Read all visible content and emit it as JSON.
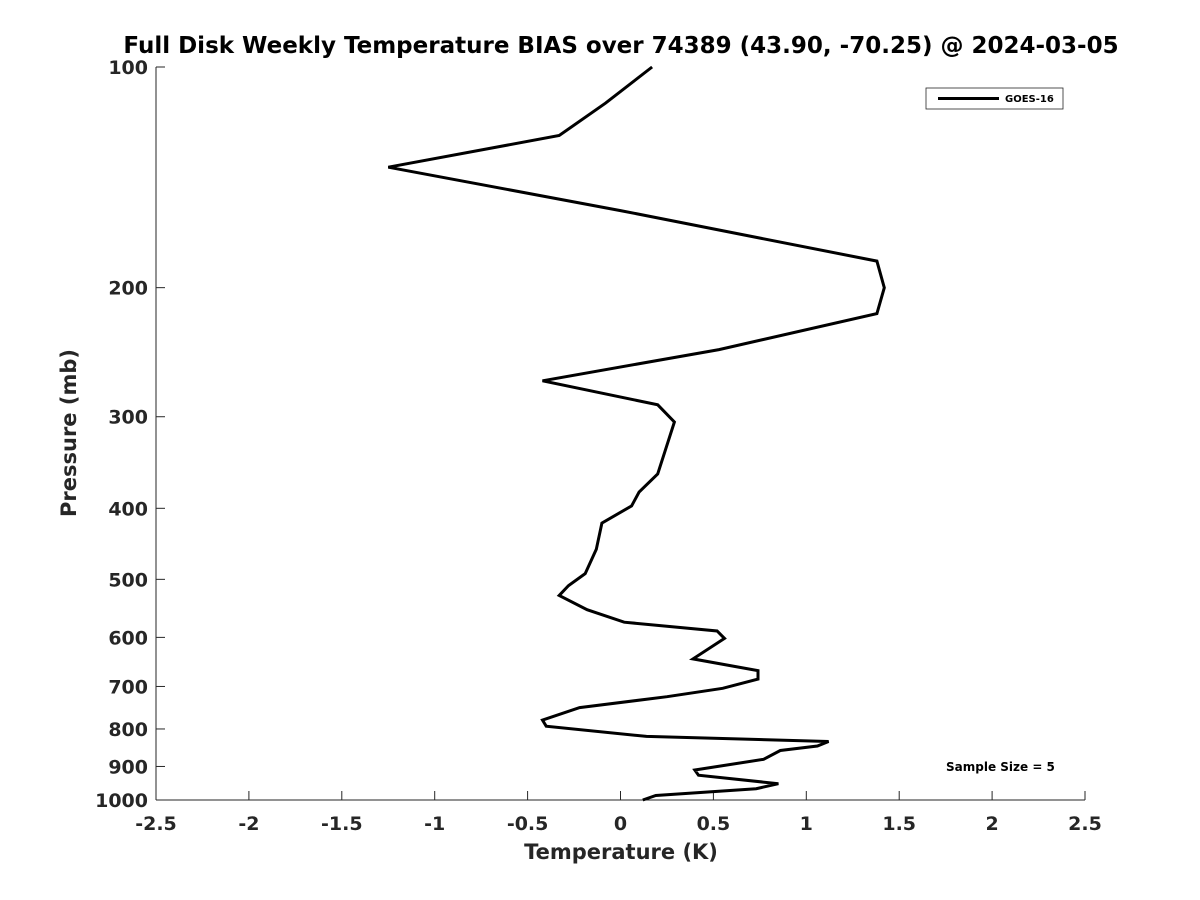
{
  "chart_data": {
    "type": "line",
    "title": "Full Disk Weekly Temperature BIAS over 74389 (43.90, -70.25) @ 2024-03-05",
    "xlabel": "Temperature (K)",
    "ylabel": "Pressure (mb)",
    "xlim": [
      -2.5,
      2.5
    ],
    "ylim": [
      1000,
      100
    ],
    "y_scale": "log",
    "y_reversed": true,
    "x_ticks": [
      -2.5,
      -2,
      -1.5,
      -1,
      -0.5,
      0,
      0.5,
      1,
      1.5,
      2,
      2.5
    ],
    "x_tick_labels": [
      "-2.5",
      "-2",
      "-1.5",
      "-1",
      "-0.5",
      "0",
      "0.5",
      "1",
      "1.5",
      "2",
      "2.5"
    ],
    "y_ticks": [
      100,
      200,
      300,
      400,
      500,
      600,
      700,
      800,
      900,
      1000
    ],
    "y_tick_labels": [
      "100",
      "200",
      "300",
      "400",
      "500",
      "600",
      "700",
      "800",
      "900",
      "1000"
    ],
    "grid": false,
    "legend_position": "top-right",
    "line_color": "#000000",
    "series": [
      {
        "name": "GOES-16",
        "x": [
          0.17,
          -0.08,
          -0.33,
          -1.25,
          0,
          1.38,
          1.42,
          1.38,
          0.53,
          -0.42,
          0.2,
          0.29,
          0.24,
          0.2,
          0.1,
          0.06,
          -0.1,
          -0.13,
          -0.19,
          -0.28,
          -0.33,
          -0.18,
          0.02,
          0.52,
          0.56,
          0.39,
          0.74,
          0.74,
          0.55,
          0.25,
          -0.22,
          -0.42,
          -0.4,
          0.14,
          1.12,
          1.06,
          0.86,
          0.77,
          0.4,
          0.42,
          0.85,
          0.73,
          0.19,
          0.12
        ],
        "y": [
          100,
          112,
          124,
          137,
          157,
          184,
          200,
          217,
          243,
          268,
          289,
          305,
          334,
          359,
          380,
          397,
          419,
          455,
          491,
          510,
          526,
          550,
          572,
          588,
          602,
          642,
          666,
          684,
          704,
          723,
          748,
          778,
          793,
          819,
          832,
          844,
          856,
          880,
          910,
          925,
          950,
          965,
          986,
          1000
        ]
      }
    ],
    "annotations": [
      "Sample Size = 5"
    ]
  }
}
